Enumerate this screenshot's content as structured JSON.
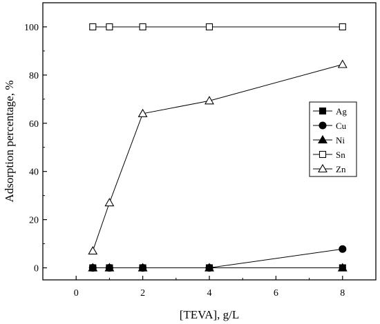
{
  "chart_data": {
    "type": "line",
    "xlabel": "[TEVA], g/L",
    "ylabel": "Adsorption percentage, %",
    "xlim": [
      -1,
      9
    ],
    "ylim": [
      -5,
      110
    ],
    "xticks": [
      0,
      2,
      4,
      6,
      8
    ],
    "yticks": [
      0,
      20,
      40,
      60,
      80,
      100
    ],
    "xtick_labels": [
      "0",
      "2",
      "4",
      "6",
      "8"
    ],
    "ytick_labels": [
      "0",
      "20",
      "40",
      "60",
      "80",
      "100"
    ],
    "grid": false,
    "legend_position": "right",
    "series": [
      {
        "name": "Ag",
        "marker": "square",
        "filled": true,
        "points": [
          [
            0.5,
            0
          ],
          [
            1,
            0
          ],
          [
            2,
            0
          ],
          [
            4,
            0
          ],
          [
            8,
            0
          ]
        ]
      },
      {
        "name": "Cu",
        "marker": "circle",
        "filled": true,
        "points": [
          [
            0.5,
            0
          ],
          [
            1,
            0
          ],
          [
            2,
            0
          ],
          [
            4,
            0
          ],
          [
            8,
            7.8
          ]
        ]
      },
      {
        "name": "Ni",
        "marker": "triangle",
        "filled": true,
        "points": [
          [
            0.5,
            0
          ],
          [
            1,
            0
          ],
          [
            2,
            0
          ],
          [
            4,
            0
          ],
          [
            8,
            0
          ]
        ]
      },
      {
        "name": "Sn",
        "marker": "square",
        "filled": false,
        "points": [
          [
            0.5,
            100
          ],
          [
            1,
            100
          ],
          [
            2,
            100
          ],
          [
            4,
            100
          ],
          [
            8,
            100
          ]
        ]
      },
      {
        "name": "Zn",
        "marker": "triangle",
        "filled": false,
        "points": [
          [
            0.5,
            7
          ],
          [
            1,
            27
          ],
          [
            2,
            64
          ],
          [
            4,
            69.3
          ],
          [
            8,
            84.4
          ]
        ]
      }
    ],
    "colors": {
      "line": "#000000",
      "background": "#ffffff"
    }
  }
}
